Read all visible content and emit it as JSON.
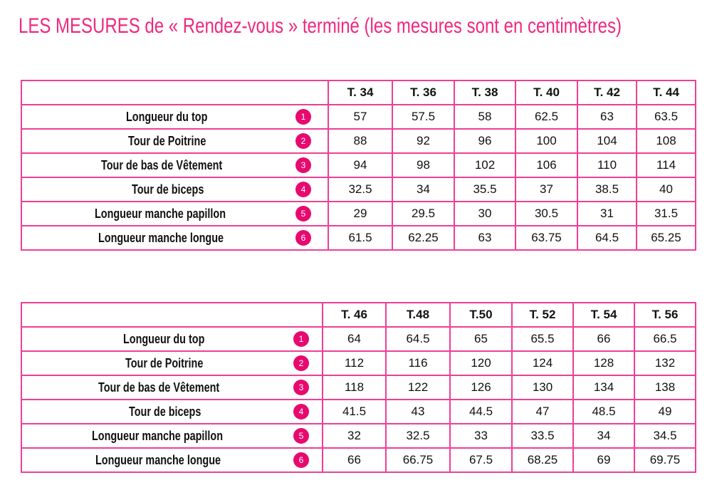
{
  "title": "LES MESURES de « Rendez-vous » terminé (les mesures sont en centimètres)",
  "accent_color": "#f0287e",
  "labels": [
    "Longueur du top",
    "Tour de Poitrine",
    "Tour de bas de Vêtement",
    "Tour de biceps",
    "Longueur manche papillon",
    "Longueur manche longue"
  ],
  "numbers": [
    "1",
    "2",
    "3",
    "4",
    "5",
    "6"
  ],
  "table1": {
    "sizes": [
      "T. 34",
      "T. 36",
      "T. 38",
      "T. 40",
      "T. 42",
      "T. 44"
    ],
    "rows": [
      [
        "57",
        "57.5",
        "58",
        "62.5",
        "63",
        "63.5"
      ],
      [
        "88",
        "92",
        "96",
        "100",
        "104",
        "108"
      ],
      [
        "94",
        "98",
        "102",
        "106",
        "110",
        "114"
      ],
      [
        "32.5",
        "34",
        "35.5",
        "37",
        "38.5",
        "40"
      ],
      [
        "29",
        "29.5",
        "30",
        "30.5",
        "31",
        "31.5"
      ],
      [
        "61.5",
        "62.25",
        "63",
        "63.75",
        "64.5",
        "65.25"
      ]
    ]
  },
  "table2": {
    "sizes": [
      "T. 46",
      "T.48",
      "T.50",
      "T. 52",
      "T. 54",
      "T. 56"
    ],
    "rows": [
      [
        "64",
        "64.5",
        "65",
        "65.5",
        "66",
        "66.5"
      ],
      [
        "112",
        "116",
        "120",
        "124",
        "128",
        "132"
      ],
      [
        "118",
        "122",
        "126",
        "130",
        "134",
        "138"
      ],
      [
        "41.5",
        "43",
        "44.5",
        "47",
        "48.5",
        "49"
      ],
      [
        "32",
        "32.5",
        "33",
        "33.5",
        "34",
        "34.5"
      ],
      [
        "66",
        "66.75",
        "67.5",
        "68.25",
        "69",
        "69.75"
      ]
    ]
  }
}
